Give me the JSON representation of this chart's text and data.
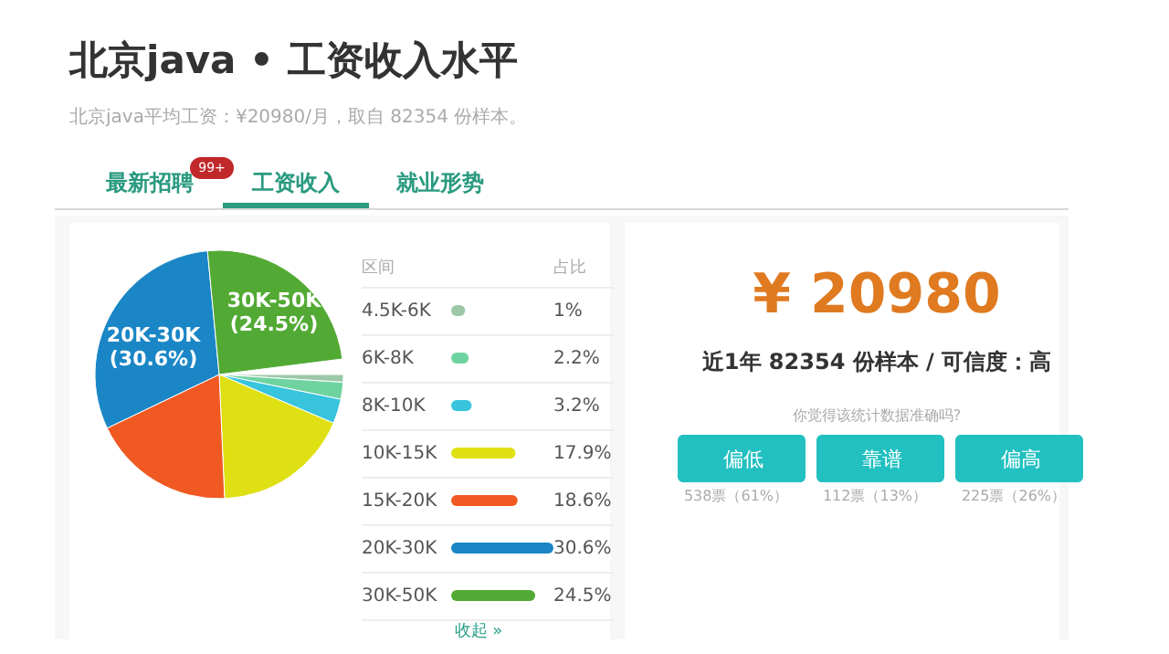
{
  "chart_data": {
    "type": "pie",
    "title": "北京java • 工资收入水平",
    "subtitle": "北京java平均工资：¥20980/月，取自 82354 份样本。",
    "legend_title": "区间",
    "categories": [
      "4.5K-6K",
      "6K-8K",
      "8K-10K",
      "10K-15K",
      "15K-20K",
      "20K-30K",
      "30K-50K"
    ],
    "values": [
      1,
      2.2,
      3.2,
      17.9,
      18.6,
      30.6,
      24.5
    ],
    "colors": [
      "#9cc8a8",
      "#6fd3a0",
      "#38c4dc",
      "#dfe014",
      "#f05a22",
      "#1a86c6",
      "#52aa34"
    ],
    "value_labels": [
      "1%",
      "2.2%",
      "3.2%",
      "17.9%",
      "18.6%",
      "30.6%",
      "24.5%"
    ],
    "legend": "right",
    "annotations": [
      "20K-30K (30.6%)",
      "30K-50K (24.5%)",
      "占比",
      "收起 »",
      "最新招聘",
      "99+",
      "工资收入",
      "就业形势",
      "¥ 20980",
      "近1年 82354 份样本 / 可信度：高",
      "你觉得该统计数据准确吗?",
      "偏低",
      "靠谱",
      "偏高",
      "538票（61%）",
      "112票（13%）",
      "225票（26%）"
    ]
  }
}
